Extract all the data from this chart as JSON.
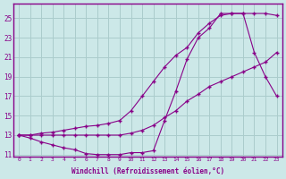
{
  "xlabel": "Windchill (Refroidissement éolien,°C)",
  "bg_color": "#cce8e8",
  "line_color": "#880088",
  "grid_color": "#aacccc",
  "xmin": 0,
  "xmax": 23,
  "ymin": 11,
  "ymax": 26,
  "yticks": [
    11,
    13,
    15,
    17,
    19,
    21,
    23,
    25
  ],
  "xticks": [
    0,
    1,
    2,
    3,
    4,
    5,
    6,
    7,
    8,
    9,
    10,
    11,
    12,
    13,
    14,
    15,
    16,
    17,
    18,
    19,
    20,
    21,
    22,
    23
  ],
  "line1_x": [
    0,
    1,
    2,
    3,
    4,
    5,
    6,
    7,
    8,
    9,
    10,
    11,
    12,
    13,
    14,
    15,
    16,
    17,
    18,
    19,
    20,
    21,
    22,
    23
  ],
  "line1_y": [
    13.0,
    13.0,
    13.2,
    13.3,
    13.5,
    13.7,
    13.9,
    14.0,
    14.2,
    14.5,
    15.5,
    17.0,
    18.5,
    20.0,
    21.2,
    22.0,
    23.5,
    24.5,
    25.3,
    25.5,
    25.5,
    25.5,
    25.5,
    25.3
  ],
  "line2_x": [
    0,
    1,
    2,
    3,
    4,
    5,
    6,
    7,
    8,
    9,
    10,
    11,
    12,
    13,
    14,
    15,
    16,
    17,
    18,
    19,
    20,
    21,
    22,
    23
  ],
  "line2_y": [
    13.0,
    13.0,
    13.0,
    13.0,
    13.0,
    13.0,
    13.0,
    13.0,
    13.0,
    13.0,
    13.2,
    13.5,
    14.0,
    14.8,
    15.5,
    16.5,
    17.2,
    18.0,
    18.5,
    19.0,
    19.5,
    20.0,
    20.5,
    21.5
  ],
  "line3_x": [
    0,
    1,
    2,
    3,
    4,
    5,
    6,
    7,
    8,
    9,
    10,
    11,
    12,
    13,
    14,
    15,
    16,
    17,
    18,
    19,
    20,
    21,
    22,
    23
  ],
  "line3_y": [
    13.0,
    12.7,
    12.3,
    12.0,
    11.7,
    11.5,
    11.1,
    11.0,
    11.0,
    11.0,
    11.2,
    11.2,
    11.4,
    14.5,
    17.5,
    20.8,
    23.0,
    24.0,
    25.5,
    25.5,
    25.5,
    21.5,
    19.0,
    17.0
  ]
}
